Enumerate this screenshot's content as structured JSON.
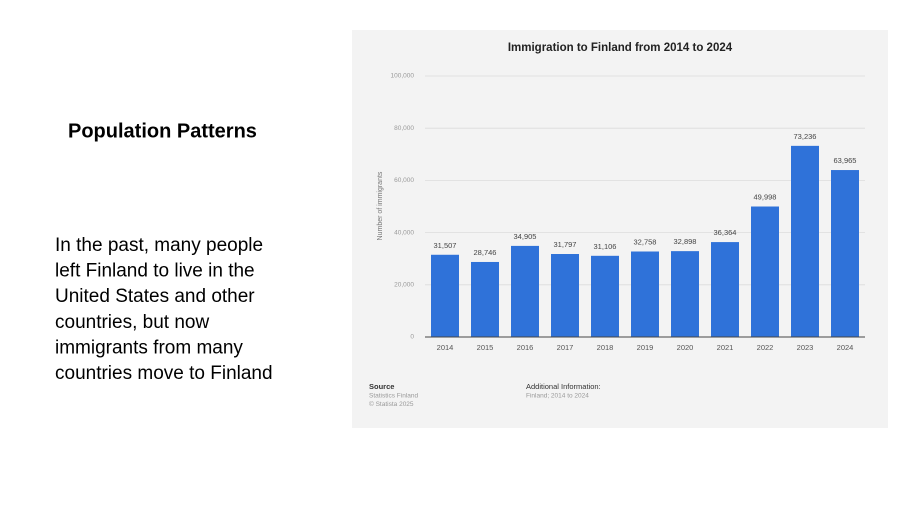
{
  "slide": {
    "heading": "Population Patterns",
    "body_lines": [
      "In the past, many people",
      "left Finland to live in the",
      "United States and other",
      "countries, but now",
      "immigrants from many",
      "countries move to Finland"
    ]
  },
  "chart_data": {
    "type": "bar",
    "title": "Immigration to Finland from 2014 to 2024",
    "y_label": "Number of immigrants",
    "categories": [
      "2014",
      "2015",
      "2016",
      "2017",
      "2018",
      "2019",
      "2020",
      "2021",
      "2022",
      "2023",
      "2024"
    ],
    "values": [
      31507,
      28746,
      34905,
      31797,
      31106,
      32758,
      32898,
      36364,
      49998,
      73236,
      63965
    ],
    "value_labels": [
      "31,507",
      "28,746",
      "34,905",
      "31,797",
      "31,106",
      "32,758",
      "32,898",
      "36,364",
      "49,998",
      "73,236",
      "63,965"
    ],
    "color": "#2f72d9",
    "ylim": [
      0,
      100000
    ],
    "yticks": [
      0,
      {
        "value": 20000,
        "label": "20,000"
      },
      {
        "value": 40000,
        "label": "40,000"
      },
      {
        "value": 60000,
        "label": "60,000"
      },
      {
        "value": 80000,
        "label": "80,000"
      },
      {
        "value": 100000,
        "label": "100,000"
      }
    ],
    "grid": true,
    "source_title": "Source",
    "source_lines": [
      "Statistics Finland",
      "© Statista 2025"
    ],
    "info_title": "Additional Information:",
    "info_lines": [
      "Finland; 2014 to 2024"
    ]
  }
}
